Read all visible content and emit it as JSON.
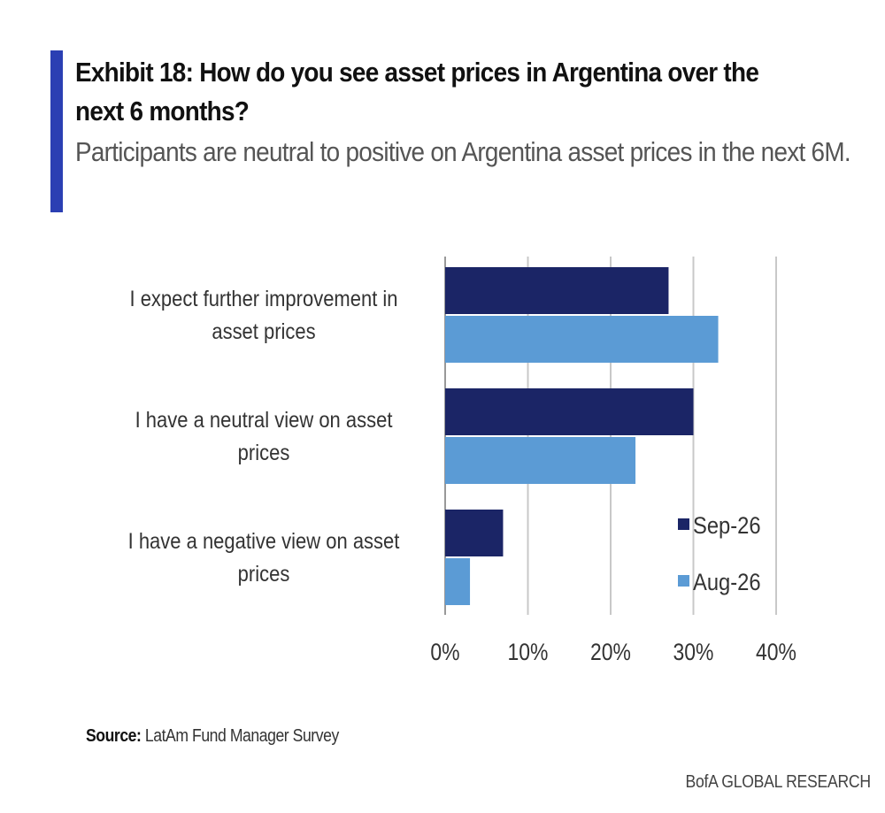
{
  "title": "Exhibit 18: How do you see asset prices in Argentina over the next 6 months?",
  "subtitle": "Participants are neutral to positive on Argentina asset prices in the next 6M.",
  "source_label": "Source:",
  "source_text": "LatAm Fund Manager Survey",
  "brand": "BofA GLOBAL RESEARCH",
  "colors": {
    "accent": "#2b3fb3",
    "sep": "#1b2566",
    "aug": "#5b9bd5",
    "grid": "#c8c8c8"
  },
  "chart_data": {
    "type": "bar",
    "orientation": "horizontal",
    "categories": [
      [
        "I expect further improvement in",
        "asset prices"
      ],
      [
        "I have a neutral view on asset",
        "prices"
      ],
      [
        "I have a negative view on asset",
        "prices"
      ]
    ],
    "series": [
      {
        "name": "Sep-26",
        "values": [
          27,
          30,
          7
        ]
      },
      {
        "name": "Aug-26",
        "values": [
          33,
          23,
          3
        ]
      }
    ],
    "xlim": [
      0,
      40
    ],
    "xticks": [
      "0%",
      "10%",
      "20%",
      "30%",
      "40%"
    ],
    "xtick_values": [
      0,
      10,
      20,
      30,
      40
    ],
    "grid": true,
    "legend_position": "bottom-right inside"
  }
}
